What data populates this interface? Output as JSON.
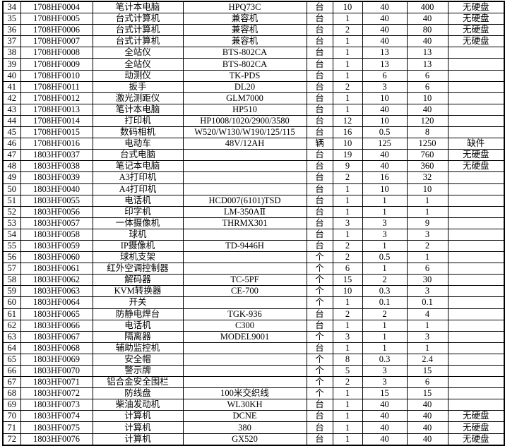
{
  "colors": {
    "grid_line": "#000000",
    "background": "#ffffff",
    "text": "#000000"
  },
  "table": {
    "rows": [
      [
        "34",
        "1708HF0004",
        "笔计本电脑",
        "HPQ73C",
        "台",
        "10",
        "40",
        "400",
        "无硬盘"
      ],
      [
        "35",
        "1708HF0005",
        "台式计算机",
        "兼容机",
        "台",
        "1",
        "40",
        "40",
        "无硬盘"
      ],
      [
        "36",
        "1708HF0006",
        "台式计算机",
        "兼容机",
        "台",
        "2",
        "40",
        "80",
        "无硬盘"
      ],
      [
        "37",
        "1708HF0007",
        "台式计算机",
        "兼容机",
        "台",
        "1",
        "40",
        "40",
        "无硬盘"
      ],
      [
        "38",
        "1708HF0008",
        "全站仪",
        "BTS-802CA",
        "台",
        "1",
        "13",
        "13",
        ""
      ],
      [
        "39",
        "1708HF0009",
        "全站仪",
        "BTS-802CA",
        "台",
        "1",
        "13",
        "13",
        ""
      ],
      [
        "40",
        "1708HF0010",
        "动测仪",
        "TK-PDS",
        "台",
        "1",
        "6",
        "6",
        ""
      ],
      [
        "41",
        "1708HF0011",
        "扳手",
        "DL20",
        "台",
        "2",
        "3",
        "6",
        ""
      ],
      [
        "42",
        "1708HF0012",
        "激光测距仪",
        "GLM7000",
        "台",
        "1",
        "10",
        "10",
        ""
      ],
      [
        "43",
        "1708HF0013",
        "笔计本电脑",
        "HP510",
        "台",
        "1",
        "40",
        "40",
        ""
      ],
      [
        "44",
        "1708HF0014",
        "打印机",
        "HP1008/1020/2900/3580",
        "台",
        "12",
        "10",
        "120",
        ""
      ],
      [
        "45",
        "1708HF0015",
        "数码相机",
        "W520/W130/W190/125/115",
        "台",
        "16",
        "0.5",
        "8",
        ""
      ],
      [
        "46",
        "1708HF0016",
        "电动车",
        "48V/12AH",
        "辆",
        "10",
        "125",
        "1250",
        "缺件"
      ],
      [
        "47",
        "1803HF0037",
        "台式电脑",
        "",
        "台",
        "19",
        "40",
        "760",
        "无硬盘"
      ],
      [
        "48",
        "1803HF0038",
        "笔记本电脑",
        "",
        "台",
        "9",
        "40",
        "360",
        "无硬盘"
      ],
      [
        "49",
        "1803HF0039",
        "A3打印机",
        "",
        "台",
        "2",
        "16",
        "32",
        ""
      ],
      [
        "50",
        "1803HF0040",
        "A4打印机",
        "",
        "台",
        "1",
        "10",
        "10",
        ""
      ],
      [
        "51",
        "1803HF0055",
        "电话机",
        "HCD007(6101)TSD",
        "台",
        "1",
        "1",
        "1",
        ""
      ],
      [
        "52",
        "1803HF0056",
        "印字机",
        "LM-350AⅡ",
        "台",
        "1",
        "1",
        "1",
        ""
      ],
      [
        "53",
        "1803HF0057",
        "一体摄像机",
        "THRMX301",
        "台",
        "3",
        "3",
        "9",
        ""
      ],
      [
        "54",
        "1803HF0058",
        "球机",
        "",
        "台",
        "1",
        "3",
        "3",
        ""
      ],
      [
        "55",
        "1803HF0059",
        "IP摄像机",
        "TD-9446H",
        "台",
        "2",
        "1",
        "2",
        ""
      ],
      [
        "56",
        "1803HF0060",
        "球机支架",
        "",
        "个",
        "2",
        "0.5",
        "1",
        ""
      ],
      [
        "57",
        "1803HF0061",
        "红外空调控制器",
        "",
        "个",
        "6",
        "1",
        "6",
        ""
      ],
      [
        "58",
        "1803HF0062",
        "解码器",
        "TC-5PF",
        "个",
        "15",
        "2",
        "30",
        ""
      ],
      [
        "59",
        "1803HF0063",
        "KVM转换器",
        "CE-700",
        "个",
        "10",
        "0.3",
        "3",
        ""
      ],
      [
        "60",
        "1803HF0064",
        "开关",
        "",
        "个",
        "1",
        "0.1",
        "0.1",
        ""
      ],
      [
        "61",
        "1803HF0065",
        "防静电焊台",
        "TGK-936",
        "台",
        "2",
        "2",
        "4",
        ""
      ],
      [
        "62",
        "1803HF0066",
        "电话机",
        "C300",
        "台",
        "1",
        "1",
        "1",
        ""
      ],
      [
        "63",
        "1803HF0067",
        "隔离器",
        "MODEL9001",
        "个",
        "3",
        "1",
        "3",
        ""
      ],
      [
        "64",
        "1803HF0068",
        "辅助监控机",
        "",
        "台",
        "1",
        "1",
        "1",
        ""
      ],
      [
        "65",
        "1803HF0069",
        "安全帽",
        "",
        "个",
        "8",
        "0.3",
        "2.4",
        ""
      ],
      [
        "66",
        "1803HF0070",
        "警示牌",
        "",
        "个",
        "5",
        "3",
        "15",
        ""
      ],
      [
        "67",
        "1803HF0071",
        "铝合金安全围栏",
        "",
        "个",
        "2",
        "3",
        "6",
        ""
      ],
      [
        "68",
        "1803HF0072",
        "防线盘",
        "100米交织线",
        "个",
        "1",
        "15",
        "15",
        ""
      ],
      [
        "69",
        "1803HF0073",
        "柴油发动机",
        "WL30KH",
        "台",
        "1",
        "40",
        "40",
        ""
      ],
      [
        "70",
        "1803HF0074",
        "计算机",
        "DCNE",
        "台",
        "1",
        "40",
        "40",
        "无硬盘"
      ],
      [
        "71",
        "1803HF0075",
        "计算机",
        "380",
        "台",
        "1",
        "40",
        "40",
        "无硬盘"
      ],
      [
        "72",
        "1803HF0076",
        "计算机",
        "GX520",
        "台",
        "1",
        "40",
        "40",
        "无硬盘"
      ]
    ]
  }
}
